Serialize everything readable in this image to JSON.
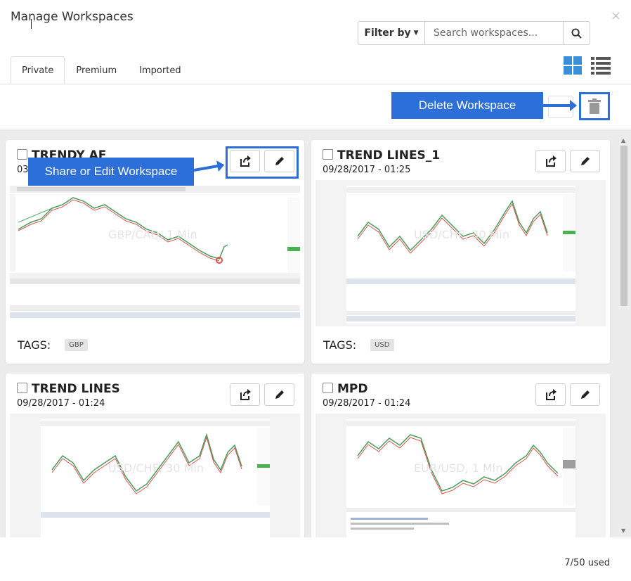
{
  "dialog": {
    "title": "Manage Workspaces",
    "close_label": "×"
  },
  "search": {
    "filter_label": "Filter by",
    "placeholder": "Search workspaces..."
  },
  "tabs": [
    {
      "label": "Private",
      "active": true
    },
    {
      "label": "Premium",
      "active": false
    },
    {
      "label": "Imported",
      "active": false
    }
  ],
  "view_toggle": {
    "grid_icon": "grid-view-icon",
    "list_icon": "list-view-icon",
    "active": "grid",
    "accent": "#3a8fd9"
  },
  "callouts": {
    "delete": "Delete Workspace",
    "share_edit": "Share or Edit Workspace",
    "color": "#2d6fd9"
  },
  "workspaces": [
    {
      "name": "TRENDY AF",
      "date": "03",
      "tags_label": "TAGS:",
      "tags": [
        "GBP"
      ],
      "chart_watermark": "GBP/CAD, 1 Min"
    },
    {
      "name": "TREND LINES_1",
      "date": "09/28/2017 - 01:25",
      "tags_label": "TAGS:",
      "tags": [
        "USD"
      ],
      "chart_watermark": "USD/CHF, 30 Min"
    },
    {
      "name": "TREND LINES",
      "date": "09/28/2017 - 01:24",
      "chart_watermark": "USD/CHF, 30 Min"
    },
    {
      "name": "MPD",
      "date": "09/28/2017 - 01:24",
      "chart_watermark": "EUR/USD, 1 Min"
    }
  ],
  "footer": {
    "usage": "7/50 used"
  }
}
